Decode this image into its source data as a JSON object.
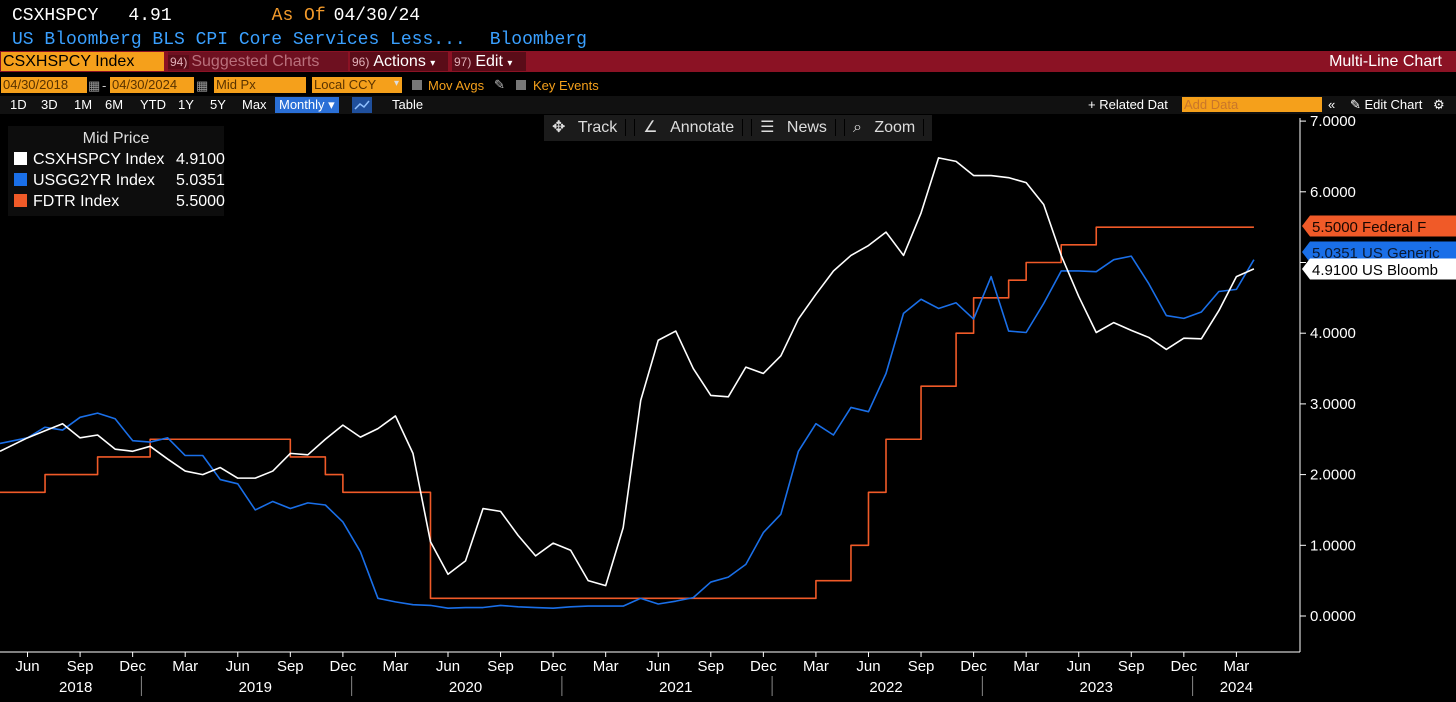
{
  "header": {
    "ticker": "CSXHSPCY",
    "last_value": "4.91",
    "as_of_label": "As Of",
    "as_of_date": "04/30/24",
    "description": "US Bloomberg BLS CPI Core Services Less...",
    "source": "Bloomberg"
  },
  "menubar": {
    "security": "CSXHSPCY Index",
    "suggested_num": "94)",
    "suggested_label": "Suggested Charts",
    "actions_num": "96)",
    "actions_label": "Actions",
    "edit_num": "97)",
    "edit_label": "Edit",
    "chart_type": "Multi-Line Chart",
    "colors": {
      "bar": "#8b1224",
      "amber": "#f5a01b"
    }
  },
  "settings": {
    "start_date": "04/30/2018",
    "end_date": "04/30/2024",
    "field": "Mid Px",
    "currency": "Local CCY",
    "mov_avgs": "Mov Avgs",
    "key_events": "Key Events"
  },
  "timeframes": [
    "1D",
    "3D",
    "1M",
    "6M",
    "YTD",
    "1Y",
    "5Y",
    "Max"
  ],
  "periodicity": "Monthly",
  "table_label": "Table",
  "related_data": "Related Dat",
  "add_data_placeholder": "Add Data",
  "edit_chart": "Edit Chart",
  "toolbar": {
    "track": "Track",
    "annotate": "Annotate",
    "news": "News",
    "zoom": "Zoom"
  },
  "legend": {
    "title": "Mid Price",
    "items": [
      {
        "name": "CSXHSPCY Index",
        "value": "4.9100",
        "color": "#ffffff"
      },
      {
        "name": "USGG2YR Index",
        "value": "5.0351",
        "color": "#1a6fe8"
      },
      {
        "name": "FDTR Index",
        "value": "5.5000",
        "color": "#f05a28"
      }
    ]
  },
  "chart_data": {
    "type": "line",
    "x_start": "2018-05",
    "x_end": "2024-04",
    "ylim": [
      -0.5,
      7.0
    ],
    "yticks": [
      "0.0000",
      "1.0000",
      "2.0000",
      "3.0000",
      "4.0000",
      "5.0000",
      "6.0000",
      "7.0000"
    ],
    "xtick_months": [
      "Jun",
      "Sep",
      "Dec",
      "Mar",
      "Jun",
      "Sep",
      "Dec",
      "Mar",
      "Jun",
      "Sep",
      "Dec",
      "Mar",
      "Jun",
      "Sep",
      "Dec",
      "Mar",
      "Jun",
      "Sep",
      "Dec",
      "Mar",
      "Jun",
      "Sep",
      "Dec",
      "Mar"
    ],
    "xtick_years": [
      "2018",
      "2019",
      "2020",
      "2021",
      "2022",
      "2023",
      "2024"
    ],
    "grid": false,
    "axis_side": "right",
    "end_labels": [
      {
        "text": "5.5000 Federal F",
        "value": 5.5,
        "color": "#f05a28"
      },
      {
        "text": "5.0351 US Generic",
        "value": 5.0351,
        "color": "#1a6fe8"
      },
      {
        "text": "4.9100 US Bloomb",
        "value": 4.91,
        "color": "#ffffff"
      }
    ],
    "series": [
      {
        "name": "CSXHSPCY Index",
        "color": "#ffffff",
        "values": [
          2.33,
          2.52,
          2.62,
          2.72,
          2.52,
          2.56,
          2.36,
          2.33,
          2.4,
          2.22,
          2.05,
          2.0,
          2.1,
          1.95,
          1.95,
          2.05,
          2.3,
          2.28,
          2.5,
          2.7,
          2.53,
          2.65,
          2.83,
          2.3,
          1.05,
          0.59,
          0.78,
          1.52,
          1.48,
          1.14,
          0.85,
          1.03,
          0.93,
          0.5,
          0.43,
          1.25,
          3.05,
          3.9,
          4.03,
          3.5,
          3.12,
          3.1,
          3.52,
          3.43,
          3.68,
          4.2,
          4.55,
          4.88,
          5.1,
          5.24,
          5.43,
          5.1,
          5.7,
          6.48,
          6.43,
          6.23,
          6.23,
          6.2,
          6.13,
          5.82,
          5.1,
          4.52,
          4.01,
          4.15,
          4.04,
          3.94,
          3.77,
          3.93,
          3.92,
          4.32,
          4.8,
          4.91
        ]
      },
      {
        "name": "USGG2YR Index",
        "color": "#1a6fe8",
        "values": [
          2.44,
          2.52,
          2.67,
          2.63,
          2.81,
          2.87,
          2.79,
          2.48,
          2.46,
          2.52,
          2.27,
          2.27,
          1.93,
          1.87,
          1.5,
          1.62,
          1.52,
          1.6,
          1.57,
          1.33,
          0.91,
          0.25,
          0.2,
          0.16,
          0.15,
          0.11,
          0.12,
          0.12,
          0.15,
          0.13,
          0.12,
          0.11,
          0.13,
          0.14,
          0.14,
          0.14,
          0.25,
          0.17,
          0.21,
          0.26,
          0.48,
          0.55,
          0.73,
          1.18,
          1.44,
          2.33,
          2.72,
          2.56,
          2.95,
          2.89,
          3.43,
          4.28,
          4.48,
          4.35,
          4.43,
          4.2,
          4.8,
          4.03,
          4.01,
          4.42,
          4.88,
          4.88,
          4.87,
          5.04,
          5.09,
          4.7,
          4.25,
          4.21,
          4.3,
          4.59,
          4.62,
          5.04
        ]
      },
      {
        "name": "FDTR Index",
        "color": "#f05a28",
        "values": [
          1.75,
          1.75,
          2.0,
          2.0,
          2.0,
          2.25,
          2.25,
          2.25,
          2.5,
          2.5,
          2.5,
          2.5,
          2.5,
          2.5,
          2.5,
          2.5,
          2.25,
          2.25,
          2.0,
          1.75,
          1.75,
          1.75,
          1.75,
          1.75,
          0.25,
          0.25,
          0.25,
          0.25,
          0.25,
          0.25,
          0.25,
          0.25,
          0.25,
          0.25,
          0.25,
          0.25,
          0.25,
          0.25,
          0.25,
          0.25,
          0.25,
          0.25,
          0.25,
          0.25,
          0.25,
          0.25,
          0.5,
          0.5,
          1.0,
          1.75,
          2.5,
          2.5,
          3.25,
          3.25,
          4.0,
          4.5,
          4.5,
          4.75,
          5.0,
          5.0,
          5.25,
          5.25,
          5.5,
          5.5,
          5.5,
          5.5,
          5.5,
          5.5,
          5.5,
          5.5,
          5.5,
          5.5
        ]
      }
    ]
  }
}
